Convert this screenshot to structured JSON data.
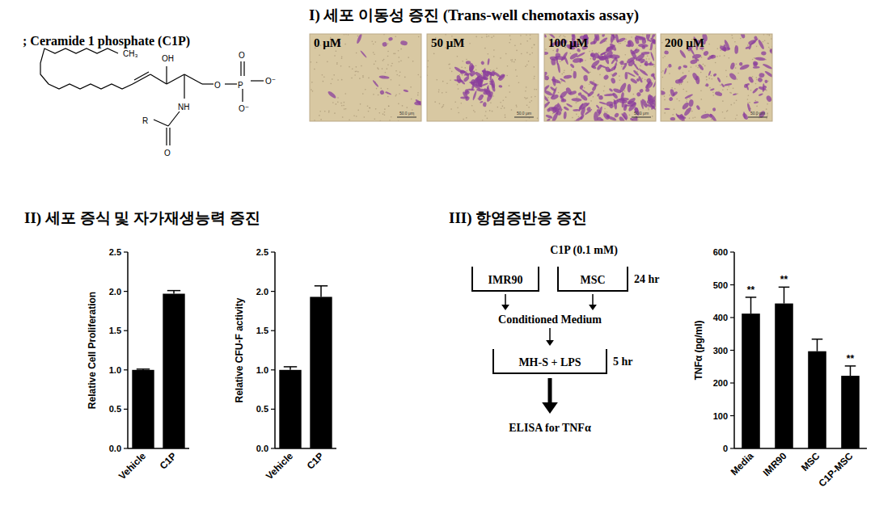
{
  "header": {
    "title": "; Ceramide 1 phosphate (C1P)"
  },
  "structure": {
    "atoms": [
      "CH₃",
      "OH",
      "O",
      "P",
      "O",
      "O⁻",
      "O⁻",
      "NH",
      "R",
      "O"
    ]
  },
  "panel_1": {
    "title": "I) 세포 이동성 증진 (Trans-well chemotaxis assay)",
    "images": [
      {
        "label": "0 μM"
      },
      {
        "label": "50 μM"
      },
      {
        "label": "100 μM"
      },
      {
        "label": "200 μM"
      }
    ],
    "scale_bar": "50.0 μm"
  },
  "panel_2": {
    "title": "II) 세포 증식 및 자가재생능력 증진"
  },
  "panel_3": {
    "title": "III) 항염증반응 증진",
    "diagram": {
      "treatment": "C1P (0.1 mM)",
      "cells": [
        "IMR90",
        "MSC"
      ],
      "time_1": "24 hr",
      "product": "Conditioned Medium",
      "assay": "MH-S + LPS",
      "time_2": "5 hr",
      "readout": "ELISA for TNFα"
    }
  },
  "chart_data": [
    {
      "type": "bar",
      "y_label": "Relative Cell Proliferation",
      "categories": [
        "Vehicle",
        "C1P"
      ],
      "values": [
        1.0,
        1.97
      ],
      "errors": [
        0.01,
        0.04
      ],
      "color": "#000000",
      "ylim": [
        0,
        2.5
      ],
      "yticks": [
        {
          "value": 0,
          "label": "0.0"
        },
        {
          "value": 0.5,
          "label": "0.5"
        },
        {
          "value": 1,
          "label": "1.0"
        },
        {
          "value": 1.5,
          "label": "1.5"
        },
        {
          "value": 2,
          "label": "2.0"
        },
        {
          "value": 2.5,
          "label": "2.5"
        }
      ]
    },
    {
      "type": "bar",
      "y_label": "Relative CFU-F activity",
      "categories": [
        "Vehicle",
        "C1P"
      ],
      "values": [
        1.0,
        1.93
      ],
      "errors": [
        0.04,
        0.14
      ],
      "color": "#000000",
      "ylim": [
        0,
        2.5
      ],
      "yticks": [
        {
          "value": 0,
          "label": "0.0"
        },
        {
          "value": 0.5,
          "label": "0.5"
        },
        {
          "value": 1,
          "label": "1.0"
        },
        {
          "value": 1.5,
          "label": "1.5"
        },
        {
          "value": 2,
          "label": "2.0"
        },
        {
          "value": 2.5,
          "label": "2.5"
        }
      ]
    },
    {
      "type": "bar",
      "y_label": "TNFα (pg/ml)",
      "categories": [
        "Media",
        "IMR90",
        "MSC",
        "C1P-MSC"
      ],
      "values": [
        412,
        443,
        297,
        222
      ],
      "errors": [
        50,
        50,
        37,
        30
      ],
      "color": "#000000",
      "ylim": [
        0,
        600
      ],
      "yticks": [
        0,
        100,
        200,
        300,
        400,
        500,
        600
      ],
      "annotations": [
        {
          "text": "**",
          "category": "Media"
        },
        {
          "text": "**",
          "category": "IMR90"
        },
        {
          "text": "**",
          "category": "C1P-MSC"
        }
      ]
    }
  ]
}
